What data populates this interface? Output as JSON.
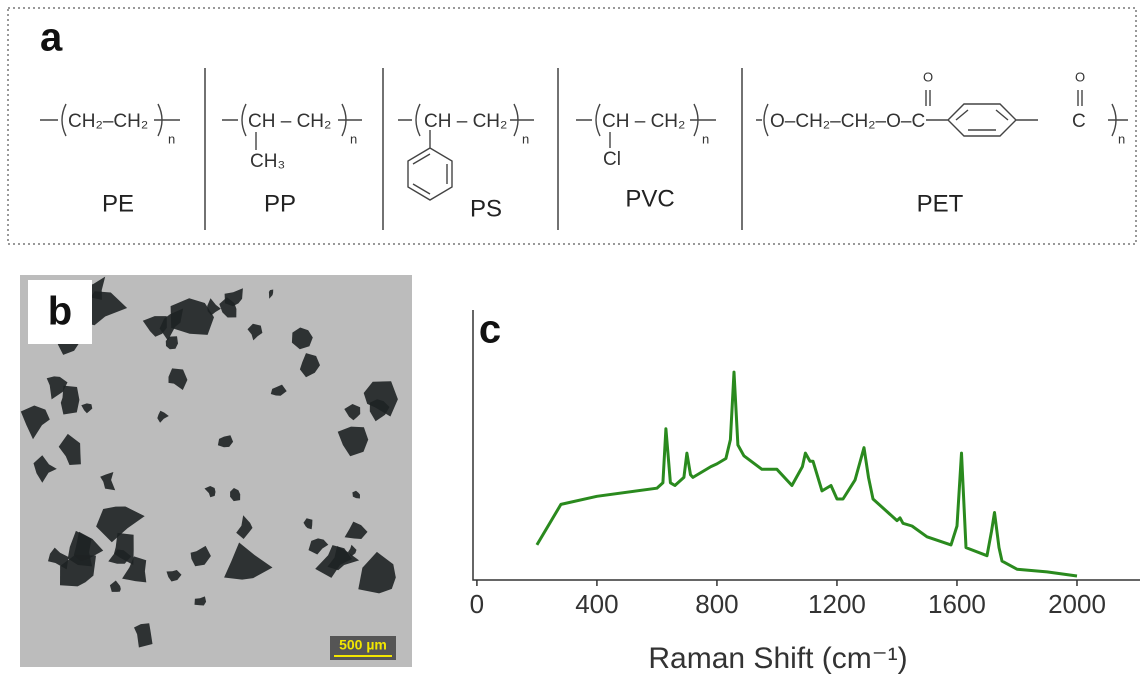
{
  "panel_a": {
    "label": "a",
    "polymers": [
      {
        "name": "PE",
        "formula": "CH₂–CH₂",
        "n": "n"
      },
      {
        "name": "PP",
        "formula": "CH – CH₂",
        "substituent": "CH₃",
        "n": "n"
      },
      {
        "name": "PS",
        "formula": "CH – CH₂",
        "n": "n"
      },
      {
        "name": "PVC",
        "formula": "CH – CH₂",
        "substituent": "Cl",
        "n": "n"
      },
      {
        "name": "PET",
        "formula": "O–CH₂–CH₂–O–C",
        "formula_end": "C",
        "carbonyl": "O",
        "n": "n"
      }
    ]
  },
  "panel_b": {
    "label": "b",
    "scale_bar": "500 µm"
  },
  "chart_data": {
    "type": "line",
    "label": "c",
    "x_label": "Raman Shift (cm⁻¹)",
    "color": "#2a8a1e",
    "xlim": [
      -13,
      2210
    ],
    "ylim": [
      0,
      100
    ],
    "xticks": [
      0,
      400,
      800,
      1200,
      1600,
      2000
    ],
    "x": [
      200,
      280,
      400,
      600,
      620,
      630,
      645,
      660,
      690,
      700,
      712,
      720,
      780,
      800,
      830,
      845,
      857,
      870,
      890,
      950,
      1000,
      1050,
      1085,
      1095,
      1110,
      1120,
      1150,
      1180,
      1200,
      1220,
      1260,
      1280,
      1290,
      1305,
      1320,
      1400,
      1410,
      1420,
      1450,
      1500,
      1580,
      1600,
      1615,
      1630,
      1700,
      1715,
      1725,
      1740,
      1750,
      1800,
      1900,
      2000
    ],
    "values": [
      13,
      28,
      31,
      34,
      36,
      56,
      36,
      35,
      38,
      47,
      39,
      38,
      42,
      43,
      45,
      52,
      77,
      50,
      46,
      41,
      41,
      35,
      42,
      47,
      44,
      44,
      33,
      35,
      30,
      30,
      37,
      45,
      49,
      38,
      30,
      22,
      23,
      21,
      20,
      16,
      13,
      20,
      47,
      12,
      9,
      18,
      25,
      12,
      7,
      4,
      3,
      1.5
    ]
  }
}
